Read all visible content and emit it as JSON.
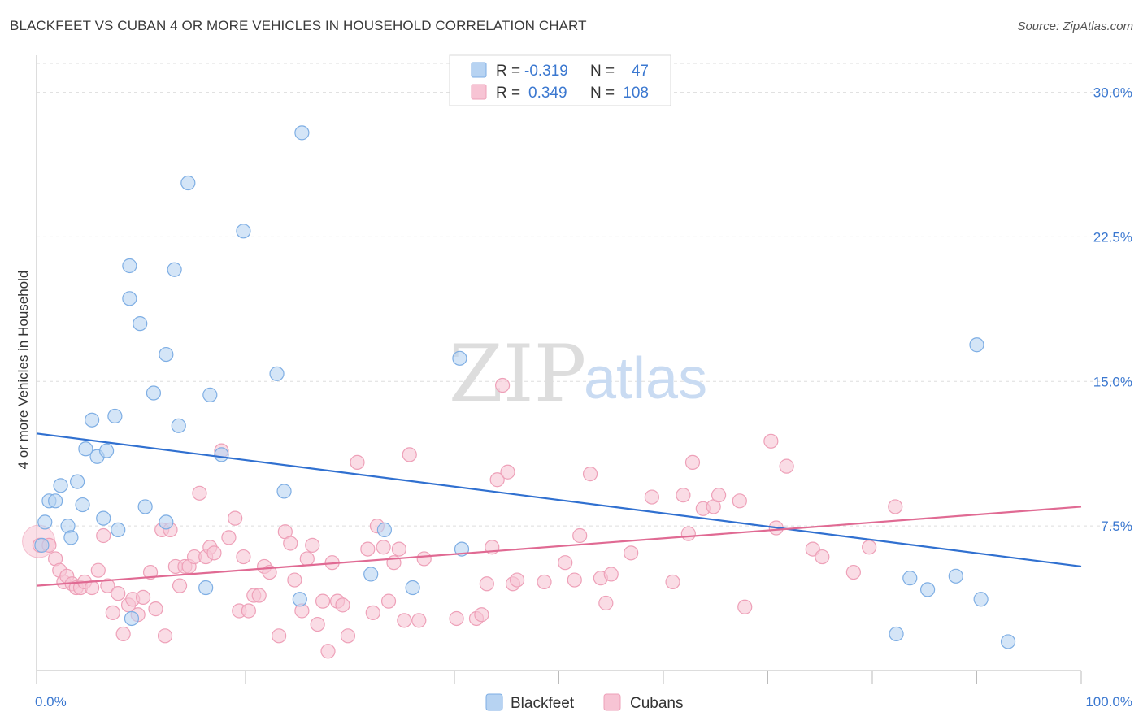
{
  "title": "BLACKFEET VS CUBAN 4 OR MORE VEHICLES IN HOUSEHOLD CORRELATION CHART",
  "source": "Source: ZipAtlas.com",
  "watermark": {
    "zip": "ZIP",
    "atlas": "atlas"
  },
  "colors": {
    "blue_fill": "#b7d3f2",
    "blue_stroke": "#7eaee4",
    "blue_line": "#3070d0",
    "pink_fill": "#f7c4d4",
    "pink_stroke": "#eea0b8",
    "pink_line": "#e06a93",
    "tick_label": "#3b78d0",
    "grid": "#dddddd"
  },
  "legend": {
    "rows": [
      {
        "r_label": "R =",
        "r_value": "-0.319",
        "n_label": "N =",
        "n_value": "47"
      },
      {
        "r_label": "R =",
        "r_value": "0.349",
        "n_label": "N =",
        "n_value": "108"
      }
    ]
  },
  "chart_data": {
    "type": "scatter",
    "title": "BLACKFEET VS CUBAN 4 OR MORE VEHICLES IN HOUSEHOLD CORRELATION CHART",
    "xlabel": "",
    "ylabel": "4 or more Vehicles in Household",
    "xlim": [
      0,
      100
    ],
    "ylim": [
      0,
      31.5
    ],
    "x_tick_labels": [
      "0.0%",
      "100.0%"
    ],
    "y_ticks": [
      7.5,
      15.0,
      22.5,
      30.0
    ],
    "y_tick_labels": [
      "7.5%",
      "15.0%",
      "22.5%",
      "30.0%"
    ],
    "grid": true,
    "legend_position": "bottom-center",
    "series": [
      {
        "name": "Blackfeet",
        "color": "#b7d3f2",
        "trend": {
          "x": [
            0,
            100
          ],
          "y": [
            12.3,
            5.4
          ]
        },
        "points": [
          [
            0.5,
            6.5
          ],
          [
            0.8,
            7.7
          ],
          [
            1.2,
            8.8
          ],
          [
            1.8,
            8.8
          ],
          [
            2.3,
            9.6
          ],
          [
            3.0,
            7.5
          ],
          [
            3.3,
            6.9
          ],
          [
            3.9,
            9.8
          ],
          [
            4.4,
            8.6
          ],
          [
            4.7,
            11.5
          ],
          [
            5.3,
            13.0
          ],
          [
            5.8,
            11.1
          ],
          [
            6.4,
            7.9
          ],
          [
            6.7,
            11.4
          ],
          [
            7.5,
            13.2
          ],
          [
            7.8,
            7.3
          ],
          [
            8.9,
            19.3
          ],
          [
            8.9,
            21.0
          ],
          [
            9.1,
            2.7
          ],
          [
            9.9,
            18.0
          ],
          [
            10.4,
            8.5
          ],
          [
            11.2,
            14.4
          ],
          [
            12.4,
            16.4
          ],
          [
            12.4,
            7.7
          ],
          [
            13.2,
            20.8
          ],
          [
            13.6,
            12.7
          ],
          [
            14.5,
            25.3
          ],
          [
            16.2,
            4.3
          ],
          [
            16.6,
            14.3
          ],
          [
            17.7,
            11.2
          ],
          [
            19.8,
            22.8
          ],
          [
            23.0,
            15.4
          ],
          [
            23.7,
            9.3
          ],
          [
            25.2,
            3.7
          ],
          [
            25.4,
            27.9
          ],
          [
            32.0,
            5.0
          ],
          [
            33.3,
            7.3
          ],
          [
            36.0,
            4.3
          ],
          [
            40.7,
            6.3
          ],
          [
            40.5,
            16.2
          ],
          [
            82.3,
            1.9
          ],
          [
            83.6,
            4.8
          ],
          [
            85.3,
            4.2
          ],
          [
            88.0,
            4.9
          ],
          [
            90.0,
            16.9
          ],
          [
            90.4,
            3.7
          ],
          [
            93.0,
            1.5
          ]
        ]
      },
      {
        "name": "Cubans",
        "color": "#f7c4d4",
        "trend": {
          "x": [
            0,
            100
          ],
          "y": [
            4.4,
            8.5
          ]
        },
        "points": [
          [
            0.3,
            6.5
          ],
          [
            1.2,
            6.5
          ],
          [
            1.8,
            5.8
          ],
          [
            2.2,
            5.2
          ],
          [
            2.6,
            4.6
          ],
          [
            2.9,
            4.9
          ],
          [
            3.4,
            4.5
          ],
          [
            3.8,
            4.3
          ],
          [
            4.2,
            4.3
          ],
          [
            4.6,
            4.6
          ],
          [
            5.3,
            4.3
          ],
          [
            5.9,
            5.2
          ],
          [
            6.4,
            7.0
          ],
          [
            6.8,
            4.4
          ],
          [
            7.3,
            3.0
          ],
          [
            7.8,
            4.0
          ],
          [
            8.3,
            1.9
          ],
          [
            8.8,
            3.4
          ],
          [
            9.2,
            3.7
          ],
          [
            9.7,
            2.9
          ],
          [
            10.2,
            3.8
          ],
          [
            10.9,
            5.1
          ],
          [
            11.4,
            3.2
          ],
          [
            12.0,
            7.3
          ],
          [
            12.3,
            1.8
          ],
          [
            12.8,
            7.3
          ],
          [
            13.3,
            5.4
          ],
          [
            13.7,
            4.4
          ],
          [
            14.2,
            5.4
          ],
          [
            14.6,
            5.4
          ],
          [
            15.1,
            5.9
          ],
          [
            15.6,
            9.2
          ],
          [
            16.2,
            5.9
          ],
          [
            16.6,
            6.4
          ],
          [
            17.0,
            6.1
          ],
          [
            17.7,
            11.4
          ],
          [
            18.4,
            6.9
          ],
          [
            19.0,
            7.9
          ],
          [
            19.4,
            3.1
          ],
          [
            19.8,
            5.9
          ],
          [
            20.3,
            3.1
          ],
          [
            20.8,
            3.9
          ],
          [
            21.3,
            3.9
          ],
          [
            21.8,
            5.4
          ],
          [
            22.3,
            5.1
          ],
          [
            23.2,
            1.8
          ],
          [
            23.8,
            7.2
          ],
          [
            24.3,
            6.6
          ],
          [
            24.7,
            4.7
          ],
          [
            25.4,
            3.1
          ],
          [
            25.9,
            5.8
          ],
          [
            26.4,
            6.5
          ],
          [
            26.9,
            2.4
          ],
          [
            27.4,
            3.6
          ],
          [
            27.9,
            1.0
          ],
          [
            28.3,
            5.6
          ],
          [
            28.8,
            3.6
          ],
          [
            29.3,
            3.4
          ],
          [
            29.8,
            1.8
          ],
          [
            30.7,
            10.8
          ],
          [
            31.7,
            6.3
          ],
          [
            32.2,
            3.0
          ],
          [
            32.6,
            7.5
          ],
          [
            33.2,
            6.4
          ],
          [
            33.7,
            3.6
          ],
          [
            34.2,
            5.6
          ],
          [
            34.7,
            6.3
          ],
          [
            35.2,
            2.6
          ],
          [
            35.7,
            11.2
          ],
          [
            36.6,
            2.6
          ],
          [
            37.1,
            5.8
          ],
          [
            40.2,
            2.7
          ],
          [
            42.1,
            2.7
          ],
          [
            42.6,
            2.9
          ],
          [
            43.1,
            4.5
          ],
          [
            43.6,
            6.4
          ],
          [
            44.1,
            9.9
          ],
          [
            44.6,
            14.8
          ],
          [
            45.1,
            10.3
          ],
          [
            45.6,
            4.5
          ],
          [
            46.0,
            4.7
          ],
          [
            48.6,
            4.6
          ],
          [
            50.6,
            5.6
          ],
          [
            51.5,
            4.7
          ],
          [
            52.0,
            7.0
          ],
          [
            53.0,
            10.2
          ],
          [
            54.0,
            4.8
          ],
          [
            54.5,
            3.5
          ],
          [
            55.0,
            5.0
          ],
          [
            56.9,
            6.1
          ],
          [
            58.9,
            9.0
          ],
          [
            60.9,
            4.6
          ],
          [
            61.9,
            9.1
          ],
          [
            62.4,
            7.1
          ],
          [
            62.8,
            10.8
          ],
          [
            63.8,
            8.4
          ],
          [
            64.8,
            8.5
          ],
          [
            65.3,
            9.1
          ],
          [
            67.8,
            3.3
          ],
          [
            67.3,
            8.8
          ],
          [
            70.3,
            11.9
          ],
          [
            70.8,
            7.4
          ],
          [
            71.8,
            10.6
          ],
          [
            74.3,
            6.3
          ],
          [
            75.2,
            5.9
          ],
          [
            78.2,
            5.1
          ],
          [
            82.2,
            8.5
          ],
          [
            79.7,
            6.4
          ]
        ]
      }
    ]
  },
  "bottom_legend": [
    {
      "label": "Blackfeet"
    },
    {
      "label": "Cubans"
    }
  ]
}
